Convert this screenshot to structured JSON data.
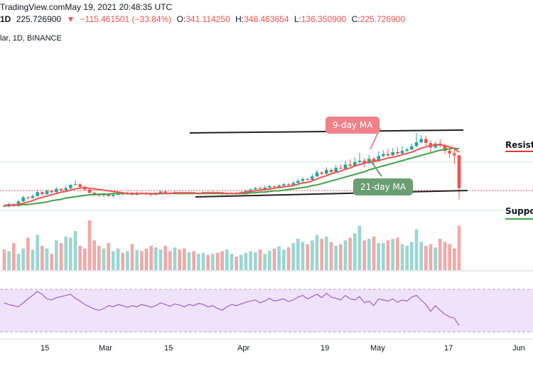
{
  "header": {
    "source": "TradingView.com",
    "timestamp": "May 19, 2021 20:48:35 UTC",
    "interval": "1D",
    "last": "225.726900",
    "change_arrow": "▼",
    "change": "−115.461501 (−33.84%)",
    "o_label": "O:",
    "o": "341.114250",
    "h_label": "H:",
    "h": "348.463654",
    "l_label": "L:",
    "l": "136.350900",
    "c_label": "C:",
    "c": "225.726900"
  },
  "subtitle": "lar, 1D, BINANCE",
  "annotations": {
    "ma9": "9-day MA",
    "ma21": "21-day MA",
    "resistance": "Resista",
    "support": "Suppor"
  },
  "colors": {
    "up": "#26a69a",
    "down": "#ef5350",
    "ma9": "#ef5350",
    "ma21": "#43a047",
    "ma9_badge": "#ef8189",
    "ma21_badge": "#6a9e72",
    "rsi": "#a15fc5",
    "rsi_band": "#efe3fb",
    "vol_up": "#9ad6d1",
    "vol_down": "#f2a8a6"
  },
  "chart_data": {
    "type": "candlestick",
    "x_tick_labels": [
      "15",
      "Mar",
      "15",
      "Apr",
      "19",
      "May",
      "17",
      "Jun"
    ],
    "candles": [
      [
        39,
        38,
        41,
        37
      ],
      [
        38,
        42,
        44,
        37
      ],
      [
        42,
        39,
        43,
        38
      ],
      [
        39,
        46,
        48,
        38
      ],
      [
        46,
        52,
        55,
        45
      ],
      [
        52,
        51,
        54,
        49
      ],
      [
        51,
        54,
        57,
        50
      ],
      [
        54,
        60,
        64,
        53
      ],
      [
        60,
        57,
        61,
        55
      ],
      [
        57,
        62,
        64,
        56
      ],
      [
        62,
        60,
        63,
        58
      ],
      [
        60,
        65,
        68,
        59
      ],
      [
        65,
        63,
        66,
        61
      ],
      [
        63,
        66,
        70,
        62
      ],
      [
        66,
        71,
        73,
        64
      ],
      [
        71,
        72,
        78,
        70
      ],
      [
        72,
        68,
        74,
        67
      ],
      [
        68,
        64,
        70,
        62
      ],
      [
        64,
        59,
        65,
        58
      ],
      [
        59,
        57,
        60,
        55
      ],
      [
        57,
        55,
        58,
        52
      ],
      [
        55,
        57,
        59,
        53
      ],
      [
        57,
        54,
        58,
        53
      ],
      [
        54,
        56,
        58,
        52
      ],
      [
        56,
        58,
        60,
        55
      ],
      [
        58,
        57,
        60,
        55
      ],
      [
        57,
        58,
        61,
        56
      ],
      [
        58,
        56,
        60,
        55
      ],
      [
        56,
        59,
        61,
        55
      ],
      [
        59,
        58,
        61,
        57
      ],
      [
        58,
        57,
        60,
        56
      ],
      [
        57,
        56,
        58,
        54
      ],
      [
        56,
        58,
        60,
        55
      ],
      [
        58,
        61,
        62,
        57
      ],
      [
        61,
        59,
        63,
        58
      ],
      [
        59,
        58,
        61,
        57
      ],
      [
        58,
        60,
        62,
        57
      ],
      [
        60,
        59,
        61,
        58
      ],
      [
        59,
        58,
        60,
        57
      ],
      [
        58,
        59,
        61,
        57
      ],
      [
        59,
        58,
        60,
        57
      ],
      [
        58,
        59,
        60,
        57
      ],
      [
        59,
        60,
        61,
        58
      ],
      [
        60,
        59,
        61,
        58
      ],
      [
        59,
        60,
        62,
        58
      ],
      [
        60,
        58,
        61,
        57
      ],
      [
        58,
        57,
        59,
        56
      ],
      [
        57,
        58,
        60,
        56
      ],
      [
        58,
        59,
        60,
        57
      ],
      [
        59,
        58,
        60,
        57
      ],
      [
        58,
        60,
        62,
        57
      ],
      [
        60,
        62,
        64,
        59
      ],
      [
        62,
        64,
        66,
        61
      ],
      [
        64,
        66,
        68,
        63
      ],
      [
        66,
        65,
        68,
        64
      ],
      [
        65,
        67,
        70,
        64
      ],
      [
        67,
        69,
        71,
        66
      ],
      [
        69,
        68,
        70,
        66
      ],
      [
        68,
        70,
        72,
        67
      ],
      [
        70,
        72,
        74,
        69
      ],
      [
        72,
        71,
        74,
        70
      ],
      [
        71,
        74,
        77,
        70
      ],
      [
        74,
        77,
        80,
        73
      ],
      [
        77,
        80,
        83,
        75
      ],
      [
        80,
        79,
        82,
        77
      ],
      [
        79,
        84,
        88,
        78
      ],
      [
        84,
        90,
        94,
        83
      ],
      [
        90,
        88,
        92,
        86
      ],
      [
        88,
        94,
        98,
        87
      ],
      [
        94,
        91,
        96,
        89
      ],
      [
        91,
        97,
        101,
        90
      ],
      [
        97,
        96,
        102,
        95
      ],
      [
        96,
        102,
        108,
        95
      ],
      [
        102,
        100,
        110,
        99
      ],
      [
        100,
        106,
        113,
        99
      ],
      [
        106,
        108,
        120,
        104
      ],
      [
        108,
        104,
        112,
        98
      ],
      [
        104,
        111,
        117,
        103
      ],
      [
        111,
        107,
        114,
        102
      ],
      [
        107,
        115,
        122,
        106
      ],
      [
        115,
        118,
        124,
        113
      ],
      [
        118,
        116,
        126,
        114
      ],
      [
        116,
        121,
        127,
        115
      ],
      [
        121,
        119,
        129,
        117
      ],
      [
        119,
        123,
        130,
        118
      ],
      [
        123,
        125,
        128,
        121
      ],
      [
        125,
        130,
        134,
        124
      ],
      [
        130,
        136,
        150,
        129
      ],
      [
        136,
        141,
        147,
        134
      ],
      [
        141,
        135,
        146,
        131
      ],
      [
        135,
        128,
        139,
        119
      ],
      [
        128,
        134,
        137,
        126
      ],
      [
        134,
        131,
        141,
        128
      ],
      [
        131,
        123,
        134,
        118
      ],
      [
        123,
        119,
        127,
        112
      ],
      [
        119,
        116,
        124,
        103
      ],
      [
        116,
        66,
        117,
        49
      ]
    ],
    "volume": [
      38,
      35,
      50,
      30,
      40,
      60,
      38,
      65,
      45,
      40,
      30,
      55,
      50,
      62,
      60,
      72,
      45,
      40,
      92,
      55,
      45,
      40,
      50,
      35,
      40,
      32,
      35,
      48,
      37,
      35,
      40,
      45,
      42,
      38,
      45,
      35,
      42,
      38,
      40,
      33,
      35,
      30,
      32,
      28,
      30,
      32,
      35,
      38,
      30,
      25,
      28,
      32,
      35,
      33,
      38,
      30,
      36,
      40,
      44,
      38,
      42,
      50,
      58,
      52,
      48,
      55,
      65,
      58,
      62,
      52,
      45,
      48,
      55,
      60,
      68,
      82,
      55,
      58,
      62,
      50,
      50,
      55,
      58,
      60,
      48,
      45,
      52,
      75,
      52,
      45,
      48,
      42,
      58,
      52,
      48,
      40,
      82
    ],
    "ma9": [
      39,
      40,
      40,
      41,
      43,
      45,
      47,
      50,
      52,
      54,
      56,
      58,
      60,
      61,
      63,
      65,
      66,
      67,
      66,
      65,
      64,
      63,
      62,
      61,
      60,
      59,
      58,
      58,
      58,
      58,
      58,
      58,
      57,
      58,
      58,
      58,
      59,
      59,
      59,
      59,
      59,
      58,
      59,
      59,
      59,
      59,
      59,
      58,
      58,
      58,
      59,
      60,
      61,
      62,
      63,
      64,
      65,
      66,
      67,
      68,
      69,
      70,
      72,
      74,
      75,
      77,
      80,
      83,
      85,
      88,
      90,
      92,
      95,
      97,
      100,
      102,
      104,
      106,
      107,
      108,
      110,
      112,
      113,
      115,
      117,
      119,
      121,
      124,
      127,
      129,
      131,
      132,
      132,
      131,
      129,
      126,
      121
    ],
    "ma21": [
      40,
      40,
      40,
      40,
      41,
      41,
      42,
      43,
      44,
      45,
      47,
      48,
      49,
      51,
      52,
      53,
      54,
      55,
      56,
      56,
      57,
      57,
      57,
      58,
      58,
      58,
      58,
      58,
      58,
      58,
      58,
      58,
      58,
      58,
      58,
      58,
      58,
      58,
      58,
      58,
      58,
      58,
      58,
      58,
      58,
      58,
      58,
      58,
      58,
      58,
      58,
      58,
      59,
      59,
      60,
      60,
      61,
      62,
      62,
      63,
      64,
      65,
      66,
      67,
      68,
      70,
      71,
      73,
      75,
      77,
      79,
      81,
      83,
      85,
      87,
      89,
      91,
      94,
      96,
      98,
      100,
      102,
      104,
      106,
      108,
      110,
      112,
      114,
      116,
      118,
      120,
      122,
      124,
      125,
      126,
      127,
      126
    ],
    "rsi": [
      55,
      52,
      50,
      48,
      55,
      62,
      68,
      75,
      70,
      62,
      60,
      64,
      66,
      68,
      70,
      63,
      58,
      52,
      48,
      44,
      42,
      45,
      50,
      48,
      52,
      50,
      47,
      50,
      48,
      52,
      50,
      47,
      50,
      55,
      52,
      49,
      53,
      51,
      48,
      52,
      50,
      54,
      52,
      48,
      50,
      45,
      42,
      48,
      52,
      50,
      53,
      56,
      58,
      60,
      55,
      58,
      63,
      58,
      60,
      62,
      57,
      60,
      65,
      68,
      62,
      66,
      70,
      64,
      72,
      65,
      63,
      60,
      68,
      62,
      60,
      66,
      55,
      58,
      50,
      62,
      60,
      58,
      62,
      56,
      60,
      58,
      65,
      68,
      60,
      52,
      40,
      50,
      42,
      35,
      30,
      28,
      15
    ],
    "ma_lines_note": "",
    "rsi_levels": [
      70,
      30
    ]
  }
}
